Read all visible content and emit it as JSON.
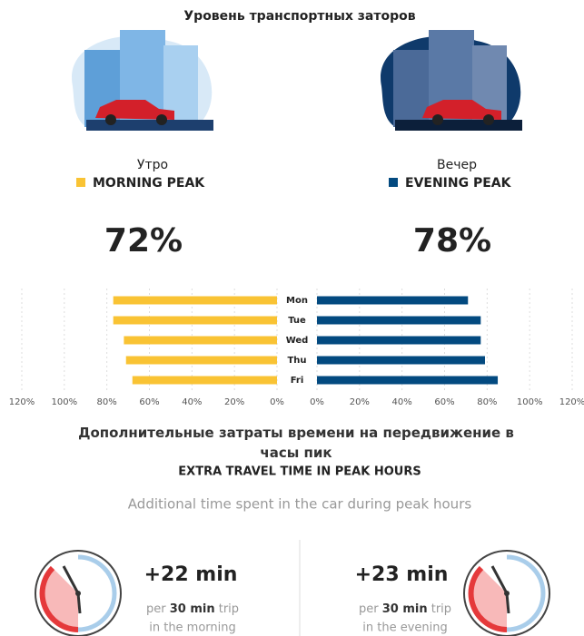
{
  "title": "Уровень транспортных заторов",
  "peaks": [
    {
      "name_ru": "Утро",
      "name": "MORNING PEAK",
      "value": "72%",
      "color": "#f9c334"
    },
    {
      "name_ru": "Вечер",
      "name": "EVENING PEAK",
      "value": "78%",
      "color": "#034a80"
    }
  ],
  "chart_data": {
    "type": "mirrored-bar",
    "categories": [
      "Mon",
      "Tue",
      "Wed",
      "Thu",
      "Fri"
    ],
    "series": [
      {
        "name": "MORNING PEAK",
        "color": "#f9c334",
        "values": [
          77,
          77,
          72,
          71,
          68
        ]
      },
      {
        "name": "EVENING PEAK",
        "color": "#034a80",
        "values": [
          71,
          77,
          77,
          79,
          85
        ]
      }
    ],
    "xlim": [
      0,
      120
    ],
    "xticks": [
      {
        "value": 0,
        "label": "0%"
      },
      {
        "value": 20,
        "label": "20%"
      },
      {
        "value": 40,
        "label": "40%"
      },
      {
        "value": 60,
        "label": "60%"
      },
      {
        "value": 80,
        "label": "80%"
      },
      {
        "value": 100,
        "label": "100%"
      },
      {
        "value": 120,
        "label": "120%"
      }
    ],
    "grid": true
  },
  "section": {
    "title_ru": "Дополнительные затраты времени на передвижение в часы пик",
    "title": "EXTRA TRAVEL TIME IN PEAK HOURS",
    "subtitle": "Additional time spent in the car during peak hours"
  },
  "extra_time": [
    {
      "value": "+22 min",
      "pre": "per",
      "trip": "30 min",
      "post": "trip",
      "when": "in the morning"
    },
    {
      "value": "+23 min",
      "pre": "per",
      "trip": "30 min",
      "post": "trip",
      "when": "in the evening"
    }
  ]
}
